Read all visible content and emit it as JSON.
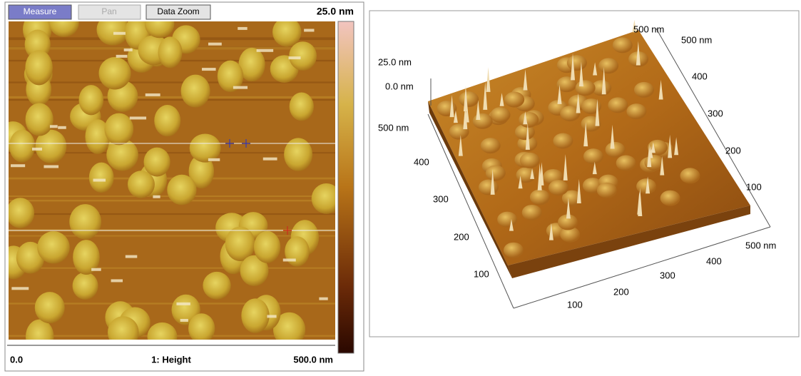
{
  "toolbar": {
    "buttons": [
      "Measure",
      "Pan",
      "Data Zoom"
    ],
    "scale_max": "25.0 nm"
  },
  "footer": {
    "left": "0.0",
    "center": "1: Height",
    "right": "500.0 nm"
  },
  "view_3d": {
    "z_labels": [
      "25.0 nm",
      "0.0 nm"
    ],
    "left_axis": [
      "500 nm",
      "400",
      "300",
      "200",
      "100"
    ],
    "right_axis": [
      "500 nm",
      "400",
      "300",
      "200",
      "100"
    ],
    "bottom_axis": [
      "100",
      "200",
      "300",
      "400",
      "500 nm"
    ],
    "top_label": "500 nm"
  }
}
